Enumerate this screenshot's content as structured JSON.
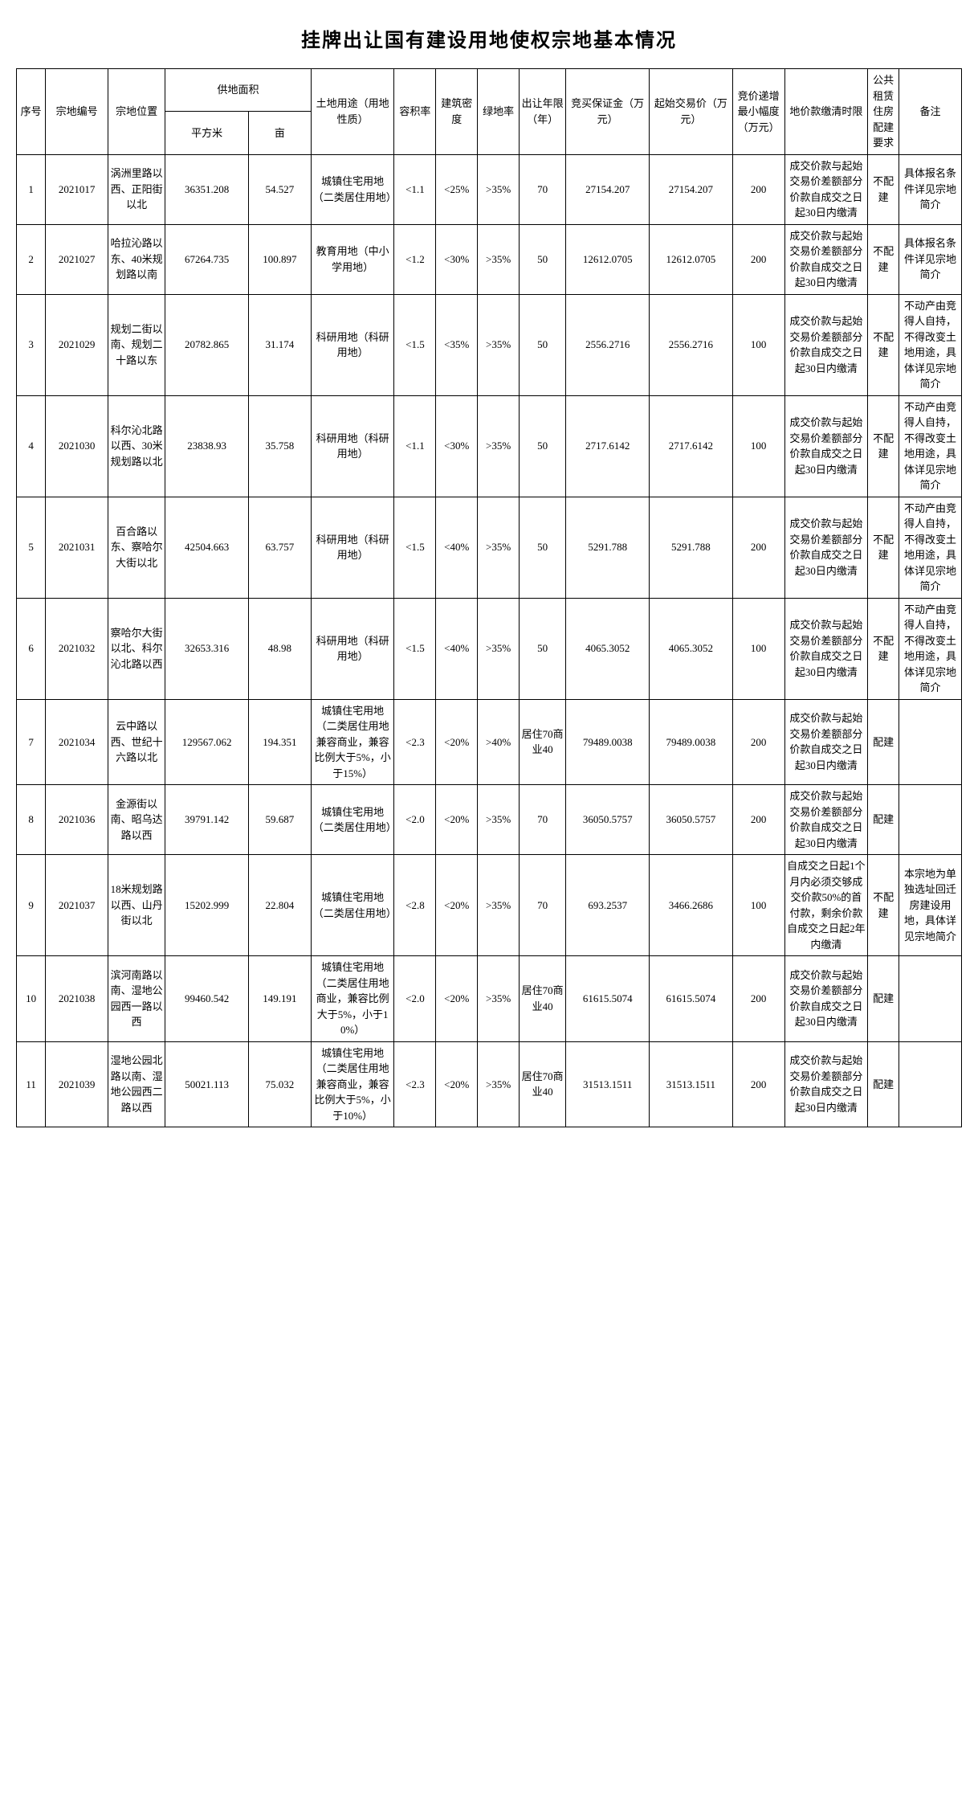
{
  "title": "挂牌出让国有建设用地使权宗地基本情况",
  "headers": {
    "seq": "序号",
    "parcel_id": "宗地编号",
    "location": "宗地位置",
    "area_group": "供地面积",
    "area_sqm": "平方米",
    "area_mu": "亩",
    "land_use": "土地用途（用地性质）",
    "far": "容积率",
    "density": "建筑密度",
    "green": "绿地率",
    "term": "出让年限（年）",
    "deposit": "竞买保证金（万元）",
    "start_price": "起始交易价（万元）",
    "bid_step": "竞价递增最小幅度（万元）",
    "payment": "地价款缴清时限",
    "public_housing": "公共租赁住房配建要求",
    "remark": "备注"
  },
  "rows": [
    {
      "seq": "1",
      "parcel_id": "2021017",
      "location": "涡洲里路以西、正阳街以北",
      "area_sqm": "36351.208",
      "area_mu": "54.527",
      "land_use": "城镇住宅用地（二类居住用地）",
      "far": "<1.1",
      "density": "<25%",
      "green": ">35%",
      "term": "70",
      "deposit": "27154.207",
      "start_price": "27154.207",
      "bid_step": "200",
      "payment": "成交价款与起始交易价差额部分价款自成交之日起30日内缴清",
      "public_housing": "不配建",
      "remark": "具体报名条件详见宗地简介"
    },
    {
      "seq": "2",
      "parcel_id": "2021027",
      "location": "哈拉沁路以东、40米规划路以南",
      "area_sqm": "67264.735",
      "area_mu": "100.897",
      "land_use": "教育用地（中小学用地）",
      "far": "<1.2",
      "density": "<30%",
      "green": ">35%",
      "term": "50",
      "deposit": "12612.0705",
      "start_price": "12612.0705",
      "bid_step": "200",
      "payment": "成交价款与起始交易价差额部分价款自成交之日起30日内缴清",
      "public_housing": "不配建",
      "remark": "具体报名条件详见宗地简介"
    },
    {
      "seq": "3",
      "parcel_id": "2021029",
      "location": "规划二街以南、规划二十路以东",
      "area_sqm": "20782.865",
      "area_mu": "31.174",
      "land_use": "科研用地（科研用地）",
      "far": "<1.5",
      "density": "<35%",
      "green": ">35%",
      "term": "50",
      "deposit": "2556.2716",
      "start_price": "2556.2716",
      "bid_step": "100",
      "payment": "成交价款与起始交易价差额部分价款自成交之日起30日内缴清",
      "public_housing": "不配建",
      "remark": "不动产由竞得人自持，不得改变土地用途，具体详见宗地简介"
    },
    {
      "seq": "4",
      "parcel_id": "2021030",
      "location": "科尔沁北路以西、30米规划路以北",
      "area_sqm": "23838.93",
      "area_mu": "35.758",
      "land_use": "科研用地（科研用地）",
      "far": "<1.1",
      "density": "<30%",
      "green": ">35%",
      "term": "50",
      "deposit": "2717.6142",
      "start_price": "2717.6142",
      "bid_step": "100",
      "payment": "成交价款与起始交易价差额部分价款自成交之日起30日内缴清",
      "public_housing": "不配建",
      "remark": "不动产由竞得人自持，不得改变土地用途，具体详见宗地简介"
    },
    {
      "seq": "5",
      "parcel_id": "2021031",
      "location": "百合路以东、察哈尔大街以北",
      "area_sqm": "42504.663",
      "area_mu": "63.757",
      "land_use": "科研用地（科研用地）",
      "far": "<1.5",
      "density": "<40%",
      "green": ">35%",
      "term": "50",
      "deposit": "5291.788",
      "start_price": "5291.788",
      "bid_step": "200",
      "payment": "成交价款与起始交易价差额部分价款自成交之日起30日内缴清",
      "public_housing": "不配建",
      "remark": "不动产由竞得人自持，不得改变土地用途，具体详见宗地简介"
    },
    {
      "seq": "6",
      "parcel_id": "2021032",
      "location": "察哈尔大街以北、科尔沁北路以西",
      "area_sqm": "32653.316",
      "area_mu": "48.98",
      "land_use": "科研用地（科研用地）",
      "far": "<1.5",
      "density": "<40%",
      "green": ">35%",
      "term": "50",
      "deposit": "4065.3052",
      "start_price": "4065.3052",
      "bid_step": "100",
      "payment": "成交价款与起始交易价差额部分价款自成交之日起30日内缴清",
      "public_housing": "不配建",
      "remark": "不动产由竞得人自持，不得改变土地用途，具体详见宗地简介"
    },
    {
      "seq": "7",
      "parcel_id": "2021034",
      "location": "云中路以西、世纪十六路以北",
      "area_sqm": "129567.062",
      "area_mu": "194.351",
      "land_use": "城镇住宅用地（二类居住用地兼容商业，兼容比例大于5%，小于15%）",
      "far": "<2.3",
      "density": "<20%",
      "green": ">40%",
      "term": "居住70商业40",
      "deposit": "79489.0038",
      "start_price": "79489.0038",
      "bid_step": "200",
      "payment": "成交价款与起始交易价差额部分价款自成交之日起30日内缴清",
      "public_housing": "配建",
      "remark": ""
    },
    {
      "seq": "8",
      "parcel_id": "2021036",
      "location": "金源街以南、昭乌达路以西",
      "area_sqm": "39791.142",
      "area_mu": "59.687",
      "land_use": "城镇住宅用地（二类居住用地）",
      "far": "<2.0",
      "density": "<20%",
      "green": ">35%",
      "term": "70",
      "deposit": "36050.5757",
      "start_price": "36050.5757",
      "bid_step": "200",
      "payment": "成交价款与起始交易价差额部分价款自成交之日起30日内缴清",
      "public_housing": "配建",
      "remark": ""
    },
    {
      "seq": "9",
      "parcel_id": "2021037",
      "location": "18米规划路以西、山丹街以北",
      "area_sqm": "15202.999",
      "area_mu": "22.804",
      "land_use": "城镇住宅用地（二类居住用地）",
      "far": "<2.8",
      "density": "<20%",
      "green": ">35%",
      "term": "70",
      "deposit": "693.2537",
      "start_price": "3466.2686",
      "bid_step": "100",
      "payment": "自成交之日起1个月内必须交够成交价款50%的首付款，剩余价款自成交之日起2年内缴清",
      "public_housing": "不配建",
      "remark": "本宗地为单独选址回迁房建设用地，具体详见宗地简介"
    },
    {
      "seq": "10",
      "parcel_id": "2021038",
      "location": "滨河南路以南、湿地公园西一路以西",
      "area_sqm": "99460.542",
      "area_mu": "149.191",
      "land_use": "城镇住宅用地（二类居住用地商业，兼容比例大于5%，小于10%）",
      "far": "<2.0",
      "density": "<20%",
      "green": ">35%",
      "term": "居住70商业40",
      "deposit": "61615.5074",
      "start_price": "61615.5074",
      "bid_step": "200",
      "payment": "成交价款与起始交易价差额部分价款自成交之日起30日内缴清",
      "public_housing": "配建",
      "remark": ""
    },
    {
      "seq": "11",
      "parcel_id": "2021039",
      "location": "湿地公园北路以南、湿地公园西二路以西",
      "area_sqm": "50021.113",
      "area_mu": "75.032",
      "land_use": "城镇住宅用地（二类居住用地兼容商业，兼容比例大于5%，小于10%）",
      "far": "<2.3",
      "density": "<20%",
      "green": ">35%",
      "term": "居住70商业40",
      "deposit": "31513.1511",
      "start_price": "31513.1511",
      "bid_step": "200",
      "payment": "成交价款与起始交易价差额部分价款自成交之日起30日内缴清",
      "public_housing": "配建",
      "remark": ""
    }
  ],
  "style": {
    "title_fontsize": 24,
    "cell_fontsize": 13,
    "border_color": "#000000",
    "background": "#ffffff",
    "text_color": "#000000",
    "font_family": "SimSun"
  }
}
